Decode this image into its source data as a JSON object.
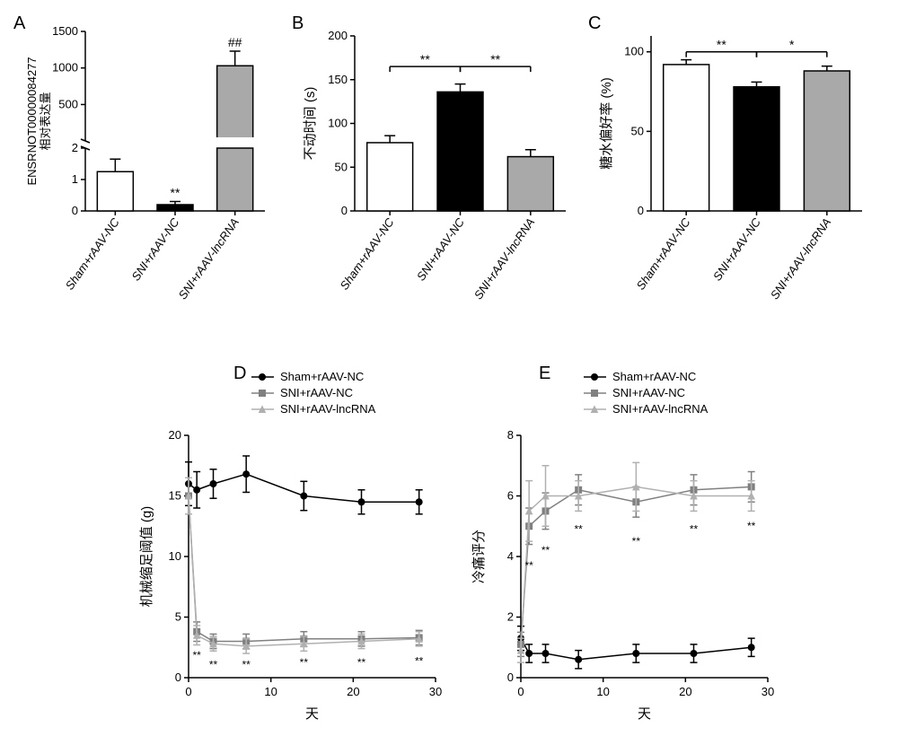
{
  "colors": {
    "white": "#ffffff",
    "black": "#000000",
    "grey": "#a9a9a9",
    "dark": "#000000",
    "midgrey": "#808080",
    "lightgrey": "#b0b0b0"
  },
  "groups": [
    "Sham+rAAV-NC",
    "SNI+rAAV-NC",
    "SNI+rAAV-lncRNA"
  ],
  "A": {
    "label": "A",
    "ylabel_line1": "ENSRNOT00000084277",
    "ylabel_line2": "相对表达量",
    "yticks_lower": [
      0,
      1,
      2
    ],
    "yticks_upper": [
      500,
      1000,
      1500
    ],
    "bars": [
      {
        "val": 1.25,
        "err": 0.4,
        "fill": "#ffffff",
        "sig": ""
      },
      {
        "val": 0.2,
        "err": 0.1,
        "fill": "#000000",
        "sig": "**"
      },
      {
        "val": 1030,
        "err": 200,
        "fill": "#a9a9a9",
        "sig": "##"
      }
    ]
  },
  "B": {
    "label": "B",
    "ylabel": "不动时间 (s)",
    "yticks": [
      0,
      50,
      100,
      150,
      200
    ],
    "ymax": 200,
    "bars": [
      {
        "val": 78,
        "err": 8,
        "fill": "#ffffff"
      },
      {
        "val": 136,
        "err": 9,
        "fill": "#000000"
      },
      {
        "val": 62,
        "err": 8,
        "fill": "#a9a9a9"
      }
    ],
    "sig": [
      {
        "from": 0,
        "to": 1,
        "y": 165,
        "text": "**"
      },
      {
        "from": 1,
        "to": 2,
        "y": 165,
        "text": "**"
      }
    ]
  },
  "C": {
    "label": "C",
    "ylabel": "糖水偏好率 (%)",
    "yticks": [
      0,
      50,
      100
    ],
    "ymax": 110,
    "bars": [
      {
        "val": 92,
        "err": 3,
        "fill": "#ffffff"
      },
      {
        "val": 78,
        "err": 3,
        "fill": "#000000"
      },
      {
        "val": 88,
        "err": 3,
        "fill": "#a9a9a9"
      }
    ],
    "sig": [
      {
        "from": 0,
        "to": 1,
        "y": 100,
        "text": "**"
      },
      {
        "from": 1,
        "to": 2,
        "y": 100,
        "text": "*"
      }
    ]
  },
  "D": {
    "label": "D",
    "ylabel": "机械缩足阈值 (g)",
    "xlabel": "天",
    "xticks": [
      0,
      10,
      20,
      30
    ],
    "yticks": [
      0,
      5,
      10,
      15,
      20
    ],
    "xmax": 30,
    "ymax": 20,
    "legend": [
      {
        "name": "Sham+rAAV-NC",
        "color": "#000000",
        "marker": "circle"
      },
      {
        "name": "SNI+rAAV-NC",
        "color": "#808080",
        "marker": "square"
      },
      {
        "name": "SNI+rAAV-lncRNA",
        "color": "#b0b0b0",
        "marker": "triangle"
      }
    ],
    "series": [
      {
        "color": "#000000",
        "marker": "circle",
        "pts": [
          [
            0,
            16
          ],
          [
            1,
            15.5
          ],
          [
            3,
            16
          ],
          [
            7,
            16.8
          ],
          [
            14,
            15
          ],
          [
            21,
            14.5
          ],
          [
            28,
            14.5
          ]
        ],
        "err": [
          1.8,
          1.5,
          1.2,
          1.5,
          1.2,
          1.0,
          1.0
        ]
      },
      {
        "color": "#808080",
        "marker": "square",
        "pts": [
          [
            0,
            15
          ],
          [
            1,
            3.8
          ],
          [
            3,
            3
          ],
          [
            7,
            3
          ],
          [
            14,
            3.2
          ],
          [
            21,
            3.2
          ],
          [
            28,
            3.3
          ]
        ],
        "err": [
          1.5,
          0.8,
          0.6,
          0.6,
          0.6,
          0.6,
          0.6
        ]
      },
      {
        "color": "#b0b0b0",
        "marker": "triangle",
        "pts": [
          [
            0,
            15
          ],
          [
            1,
            3.5
          ],
          [
            3,
            2.8
          ],
          [
            7,
            2.6
          ],
          [
            14,
            2.8
          ],
          [
            21,
            3
          ],
          [
            28,
            3.2
          ]
        ],
        "err": [
          1.5,
          0.8,
          0.6,
          0.6,
          0.6,
          0.6,
          0.6
        ]
      }
    ],
    "sig_x": [
      1,
      3,
      7,
      14,
      21,
      28
    ],
    "sig_text": "**"
  },
  "E": {
    "label": "E",
    "ylabel": "冷痛评分",
    "xlabel": "天",
    "xticks": [
      0,
      10,
      20,
      30
    ],
    "yticks": [
      0,
      2,
      4,
      6,
      8
    ],
    "xmax": 30,
    "ymax": 8,
    "legend": [
      {
        "name": "Sham+rAAV-NC",
        "color": "#000000",
        "marker": "circle"
      },
      {
        "name": "SNI+rAAV-NC",
        "color": "#808080",
        "marker": "square"
      },
      {
        "name": "SNI+rAAV-lncRNA",
        "color": "#b0b0b0",
        "marker": "triangle"
      }
    ],
    "series": [
      {
        "color": "#000000",
        "marker": "circle",
        "pts": [
          [
            0,
            1.3
          ],
          [
            1,
            0.8
          ],
          [
            3,
            0.8
          ],
          [
            7,
            0.6
          ],
          [
            14,
            0.8
          ],
          [
            21,
            0.8
          ],
          [
            28,
            1.0
          ]
        ],
        "err": [
          0.4,
          0.3,
          0.3,
          0.3,
          0.3,
          0.3,
          0.3
        ]
      },
      {
        "color": "#808080",
        "marker": "square",
        "pts": [
          [
            0,
            1.1
          ],
          [
            1,
            5.0
          ],
          [
            3,
            5.5
          ],
          [
            7,
            6.2
          ],
          [
            14,
            5.8
          ],
          [
            21,
            6.2
          ],
          [
            28,
            6.3
          ]
        ],
        "err": [
          0.4,
          0.6,
          0.6,
          0.5,
          0.5,
          0.5,
          0.5
        ]
      },
      {
        "color": "#b0b0b0",
        "marker": "triangle",
        "pts": [
          [
            0,
            0.9
          ],
          [
            1,
            5.5
          ],
          [
            3,
            6.0
          ],
          [
            7,
            6.0
          ],
          [
            14,
            6.3
          ],
          [
            21,
            6.0
          ],
          [
            28,
            6.0
          ]
        ],
        "err": [
          0.4,
          1.0,
          1.0,
          0.5,
          0.8,
          0.5,
          0.5
        ]
      }
    ],
    "sig_x": [
      1,
      3,
      7,
      14,
      21,
      28
    ],
    "sig_text": "**"
  }
}
